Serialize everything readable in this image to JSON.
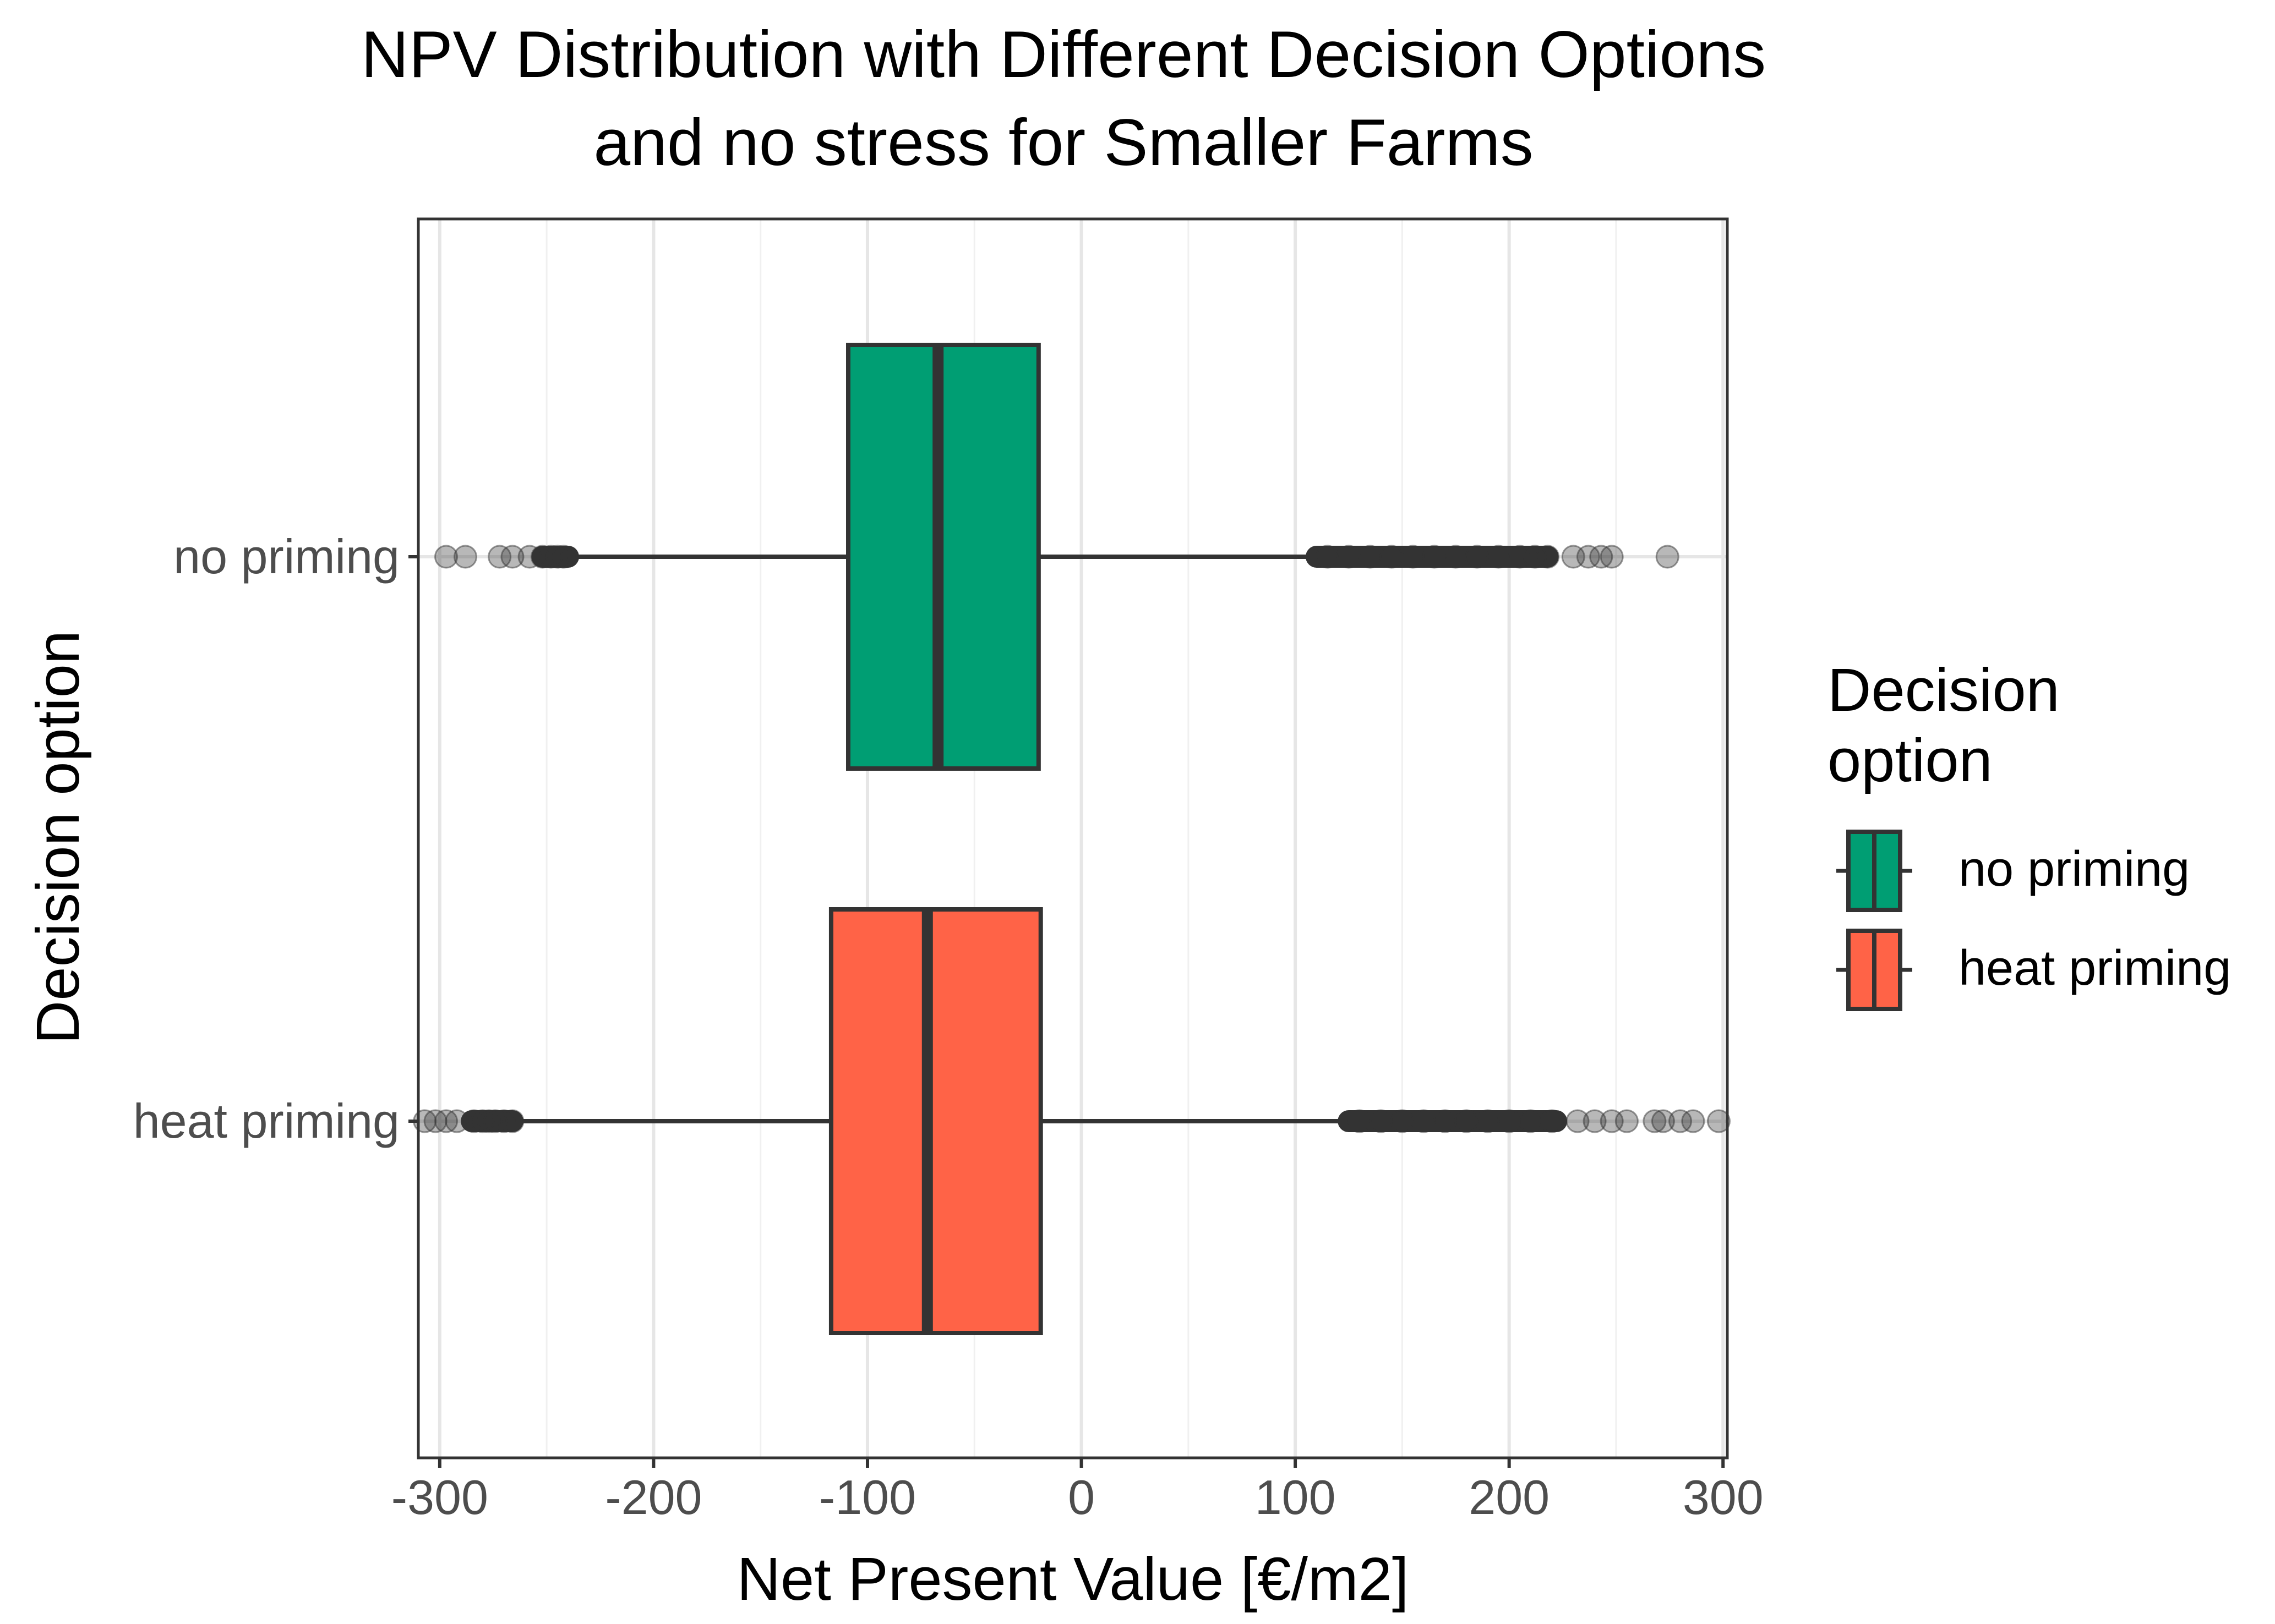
{
  "chart_data": {
    "type": "boxplot",
    "orientation": "horizontal",
    "title_lines": [
      "NPV Distribution with Different Decision Options",
      "and no stress for Smaller Farms"
    ],
    "xlabel": "Net Present Value [€/m2]",
    "ylabel": "Decision option",
    "xlim": [
      -310,
      302
    ],
    "x_ticks": [
      -300,
      -200,
      -100,
      0,
      100,
      200,
      300
    ],
    "x_tick_labels": [
      "-300",
      "-200",
      "-100",
      "0",
      "100",
      "200",
      "300"
    ],
    "x_minor_ticks": [
      -250,
      -150,
      -50,
      50,
      150,
      250
    ],
    "grid": true,
    "legend": {
      "position": "right",
      "title_lines": [
        "Decision",
        "option"
      ],
      "entries": [
        {
          "label": "no priming",
          "color": "#009E73"
        },
        {
          "label": "heat priming",
          "color": "#FF6347"
        }
      ]
    },
    "categories": [
      "no priming",
      "heat priming"
    ],
    "series": [
      {
        "name": "no priming",
        "color": "#009E73",
        "q1": -109,
        "median": -67,
        "q3": -20,
        "whisker_low": -240,
        "whisker_high": 110,
        "outliers_low": [
          -297,
          -288,
          -272,
          -266,
          -258,
          -252,
          -248,
          -245,
          -242
        ],
        "outliers_high": [
          115,
          125,
          135,
          145,
          155,
          165,
          175,
          185,
          195,
          205,
          212,
          218,
          230,
          237,
          243,
          248,
          274
        ],
        "outlier_dense_low": [
          -252,
          -240
        ],
        "outlier_dense_high": [
          110,
          218
        ]
      },
      {
        "name": "heat priming",
        "color": "#FF6347",
        "q1": -117,
        "median": -72,
        "q3": -19,
        "whisker_low": -265,
        "whisker_high": 125,
        "outliers_low": [
          -307,
          -302,
          -297,
          -292,
          -284,
          -280,
          -277,
          -274,
          -270,
          -266
        ],
        "outliers_high": [
          130,
          140,
          150,
          160,
          170,
          180,
          190,
          200,
          210,
          220,
          232,
          240,
          248,
          255,
          268,
          272,
          280,
          286,
          298
        ],
        "outlier_dense_low": [
          -285,
          -266
        ],
        "outlier_dense_high": [
          125,
          222
        ]
      }
    ]
  }
}
